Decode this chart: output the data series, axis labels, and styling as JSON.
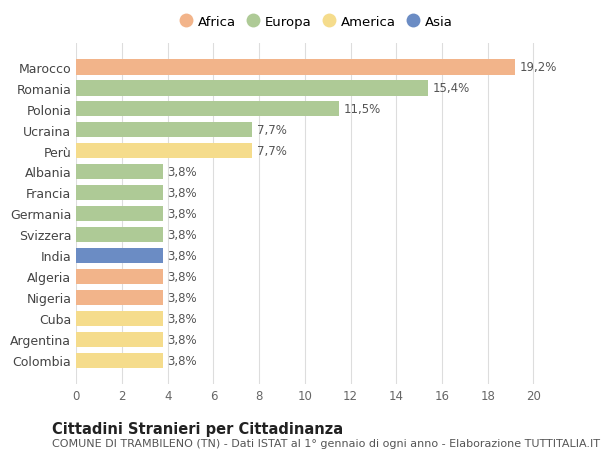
{
  "countries": [
    "Marocco",
    "Romania",
    "Polonia",
    "Ucraina",
    "Perù",
    "Albania",
    "Francia",
    "Germania",
    "Svizzera",
    "India",
    "Algeria",
    "Nigeria",
    "Cuba",
    "Argentina",
    "Colombia"
  ],
  "values": [
    19.2,
    15.4,
    11.5,
    7.7,
    7.7,
    3.8,
    3.8,
    3.8,
    3.8,
    3.8,
    3.8,
    3.8,
    3.8,
    3.8,
    3.8
  ],
  "labels": [
    "19,2%",
    "15,4%",
    "11,5%",
    "7,7%",
    "7,7%",
    "3,8%",
    "3,8%",
    "3,8%",
    "3,8%",
    "3,8%",
    "3,8%",
    "3,8%",
    "3,8%",
    "3,8%",
    "3,8%"
  ],
  "continents": [
    "Africa",
    "Europa",
    "Europa",
    "Europa",
    "America",
    "Europa",
    "Europa",
    "Europa",
    "Europa",
    "Asia",
    "Africa",
    "Africa",
    "America",
    "America",
    "America"
  ],
  "continent_colors": {
    "Africa": "#F2B48A",
    "Europa": "#AECA96",
    "America": "#F5DC8C",
    "Asia": "#6B8CC4"
  },
  "legend_order": [
    "Africa",
    "Europa",
    "America",
    "Asia"
  ],
  "title": "Cittadini Stranieri per Cittadinanza",
  "subtitle": "COMUNE DI TRAMBILENO (TN) - Dati ISTAT al 1° gennaio di ogni anno - Elaborazione TUTTITALIA.IT",
  "xlim": [
    0,
    21
  ],
  "xticks": [
    0,
    2,
    4,
    6,
    8,
    10,
    12,
    14,
    16,
    18,
    20
  ],
  "background_color": "#ffffff",
  "grid_color": "#dddddd",
  "bar_label_fontsize": 8.5,
  "title_fontsize": 10.5,
  "subtitle_fontsize": 8,
  "legend_fontsize": 9.5,
  "ytick_fontsize": 9,
  "xtick_fontsize": 8.5
}
